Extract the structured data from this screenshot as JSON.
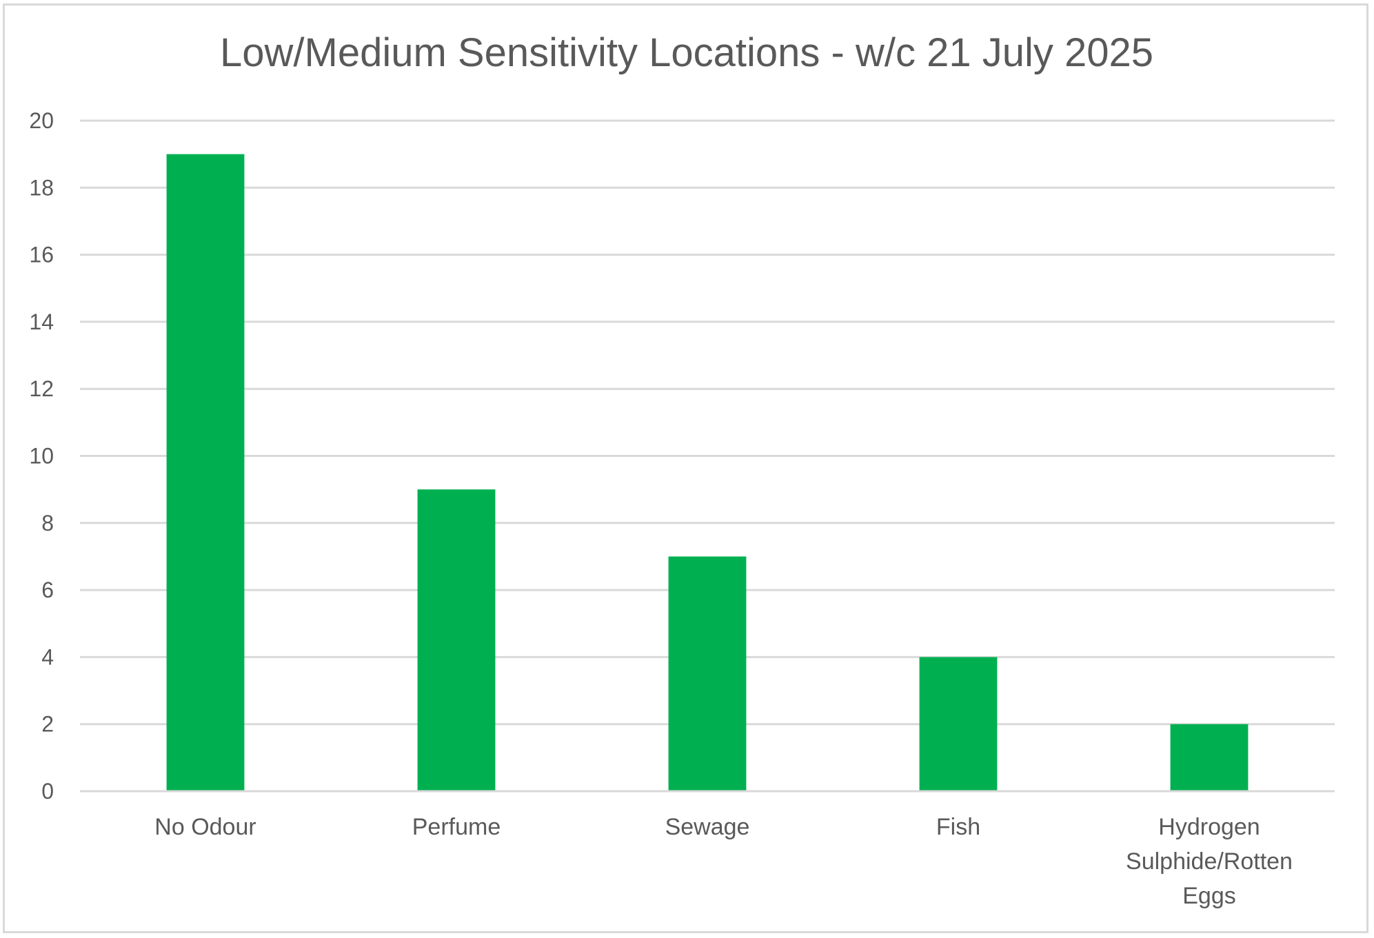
{
  "chart_data": {
    "type": "bar",
    "title": "Low/Medium Sensitivity Locations - w/c 21 July 2025",
    "xlabel": "",
    "ylabel": "",
    "categories": [
      [
        "No Odour"
      ],
      [
        "Perfume"
      ],
      [
        "Sewage"
      ],
      [
        "Fish"
      ],
      [
        "Hydrogen",
        "Sulphide/Rotten",
        "Eggs"
      ]
    ],
    "values": [
      19,
      9,
      7,
      4,
      2
    ],
    "ylim": [
      0,
      20
    ],
    "yticks": [
      "0",
      "2",
      "4",
      "6",
      "8",
      "10",
      "12",
      "14",
      "16",
      "18",
      "20"
    ],
    "grid": true,
    "legend": "none",
    "colors": {
      "bar": "#00b050",
      "grid": "#d9d9d9",
      "text": "#595959",
      "border": "#d9d9d9"
    }
  }
}
